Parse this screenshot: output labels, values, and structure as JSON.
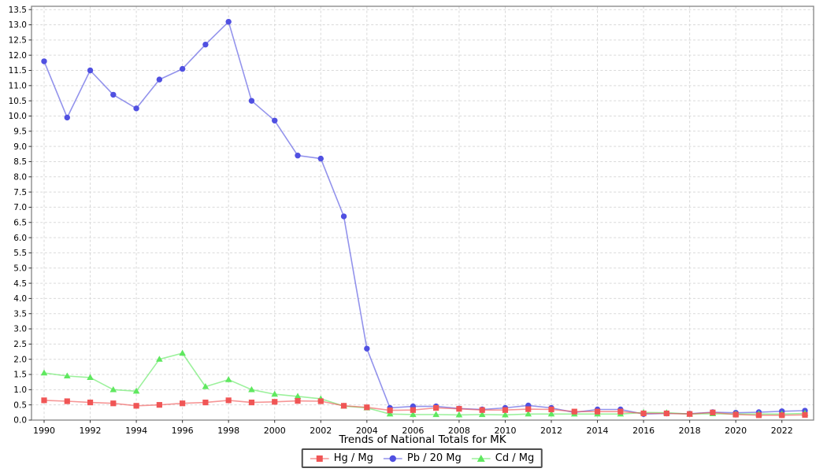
{
  "title": "Trends of National Totals for MK",
  "chart_data": {
    "type": "line",
    "title": "Trends of National Totals for MK",
    "x": [
      1990,
      1991,
      1992,
      1993,
      1994,
      1995,
      1996,
      1997,
      1998,
      1999,
      2000,
      2001,
      2002,
      2003,
      2004,
      2005,
      2006,
      2007,
      2008,
      2009,
      2010,
      2011,
      2012,
      2013,
      2014,
      2015,
      2016,
      2017,
      2018,
      2019,
      2020,
      2021,
      2022,
      2023
    ],
    "series": [
      {
        "name": "Hg / Mg",
        "marker": "square",
        "color": "#f05555",
        "values": [
          0.65,
          0.62,
          0.58,
          0.55,
          0.47,
          0.5,
          0.55,
          0.58,
          0.65,
          0.58,
          0.6,
          0.63,
          0.62,
          0.47,
          0.42,
          0.32,
          0.33,
          0.4,
          0.37,
          0.33,
          0.33,
          0.36,
          0.35,
          0.28,
          0.28,
          0.28,
          0.22,
          0.22,
          0.2,
          0.25,
          0.18,
          0.16,
          0.16,
          0.17
        ]
      },
      {
        "name": "Pb / 20 Mg",
        "marker": "circle",
        "color": "#5050e1",
        "values": [
          11.8,
          9.95,
          11.5,
          10.7,
          10.25,
          11.2,
          11.55,
          12.35,
          13.1,
          10.5,
          9.85,
          8.7,
          8.6,
          6.7,
          2.35,
          0.4,
          0.45,
          0.45,
          0.38,
          0.35,
          0.4,
          0.48,
          0.4,
          0.25,
          0.35,
          0.35,
          0.2,
          0.22,
          0.21,
          0.26,
          0.24,
          0.26,
          0.29,
          0.31
        ]
      },
      {
        "name": "Cd / Mg",
        "marker": "triangle",
        "color": "#5fe85f",
        "values": [
          1.55,
          1.45,
          1.4,
          1.0,
          0.95,
          2.0,
          2.2,
          1.1,
          1.33,
          1.0,
          0.85,
          0.78,
          0.7,
          0.46,
          0.4,
          0.2,
          0.18,
          0.18,
          0.17,
          0.18,
          0.17,
          0.2,
          0.2,
          0.2,
          0.2,
          0.2,
          0.25,
          0.24,
          0.2,
          0.21,
          0.2,
          0.2,
          0.2,
          0.22
        ]
      }
    ],
    "draw_order": [
      1,
      2,
      0
    ],
    "xticks": [
      1990,
      1992,
      1994,
      1996,
      1998,
      2000,
      2002,
      2004,
      2006,
      2008,
      2010,
      2012,
      2014,
      2016,
      2018,
      2020,
      2022
    ],
    "ylim": [
      0,
      13.5
    ],
    "ytick_step": 0.5,
    "grid": true,
    "legend_position": "bottom-center",
    "colors": {
      "grid": "#d9d9d9",
      "axis_border": "#848484",
      "tick": "#333333",
      "tick_label": "#000000"
    }
  }
}
